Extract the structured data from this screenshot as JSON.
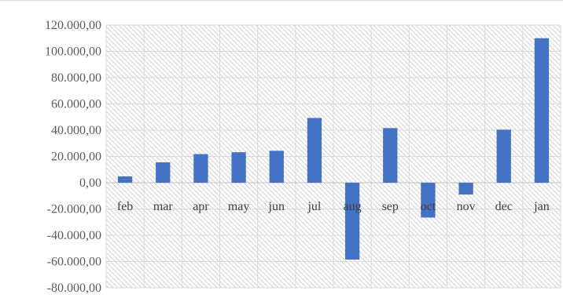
{
  "chart_data": {
    "type": "bar",
    "categories": [
      "feb",
      "mar",
      "apr",
      "may",
      "jun",
      "jul",
      "aug",
      "sep",
      "oct",
      "nov",
      "dec",
      "jan"
    ],
    "series": [
      {
        "values": [
          4800,
          15500,
          21800,
          23200,
          24300,
          49300,
          -58500,
          41600,
          -26500,
          -9000,
          40400,
          110000
        ],
        "color": "#4472c4"
      }
    ],
    "title": "",
    "xlabel": "",
    "ylabel": "",
    "ylim": [
      -80000,
      120000
    ],
    "yticks": [
      120000,
      100000,
      80000,
      60000,
      40000,
      20000,
      0,
      -20000,
      -40000,
      -60000,
      -80000
    ],
    "ytick_labels": [
      "120.000,00",
      "100.000,00",
      "80.000,00",
      "60.000,00",
      "40.000,00",
      "20.000,00",
      "0,00",
      "-20.000,00",
      "-40.000,00",
      "-60.000,00",
      "-80.000,00"
    ],
    "grid": true,
    "plot_background": "hatched",
    "legend": "none"
  }
}
